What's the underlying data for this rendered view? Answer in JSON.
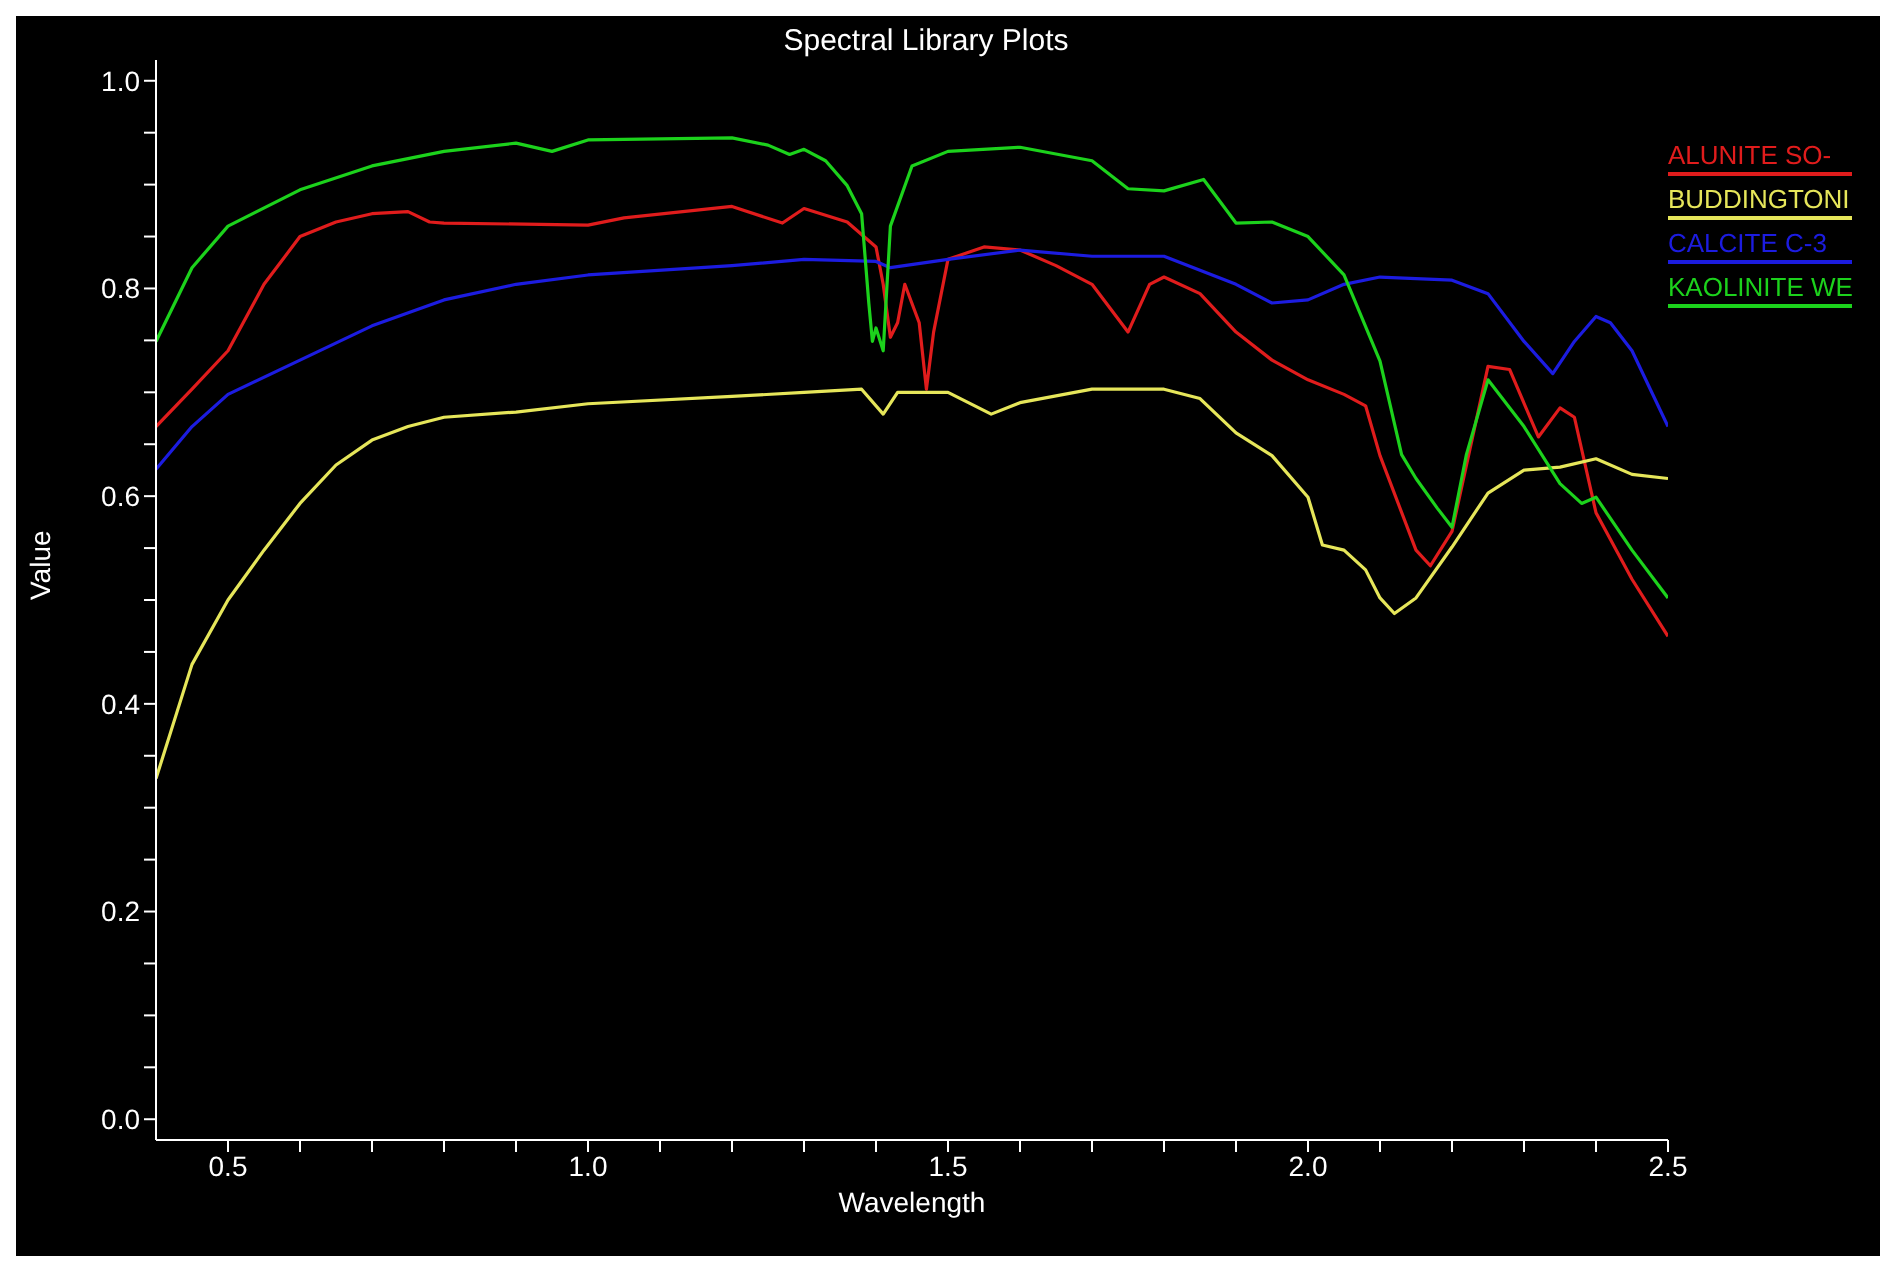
{
  "chart_data": {
    "type": "line",
    "title": "Spectral Library Plots",
    "xlabel": "Wavelength",
    "ylabel": "Value",
    "xlim": [
      0.4,
      2.5
    ],
    "ylim": [
      -0.02,
      1.02
    ],
    "xticks": [
      {
        "value": 0.5,
        "label": "0.5"
      },
      {
        "value": 0.6,
        "label": null
      },
      {
        "value": 0.7,
        "label": null
      },
      {
        "value": 0.8,
        "label": null
      },
      {
        "value": 0.9,
        "label": null
      },
      {
        "value": 1.0,
        "label": "1.0"
      },
      {
        "value": 1.1,
        "label": null
      },
      {
        "value": 1.2,
        "label": null
      },
      {
        "value": 1.3,
        "label": null
      },
      {
        "value": 1.4,
        "label": null
      },
      {
        "value": 1.5,
        "label": "1.5"
      },
      {
        "value": 1.6,
        "label": null
      },
      {
        "value": 1.7,
        "label": null
      },
      {
        "value": 1.8,
        "label": null
      },
      {
        "value": 1.9,
        "label": null
      },
      {
        "value": 2.0,
        "label": "2.0"
      },
      {
        "value": 2.1,
        "label": null
      },
      {
        "value": 2.2,
        "label": null
      },
      {
        "value": 2.3,
        "label": null
      },
      {
        "value": 2.4,
        "label": null
      },
      {
        "value": 2.5,
        "label": "2.5"
      }
    ],
    "yticks": [
      {
        "value": 0,
        "label": "0.0"
      },
      {
        "value": 0.05,
        "label": null
      },
      {
        "value": 0.1,
        "label": null
      },
      {
        "value": 0.15,
        "label": null
      },
      {
        "value": 0.2,
        "label": "0.2"
      },
      {
        "value": 0.25,
        "label": null
      },
      {
        "value": 0.3,
        "label": null
      },
      {
        "value": 0.35,
        "label": null
      },
      {
        "value": 0.4,
        "label": "0.4"
      },
      {
        "value": 0.45,
        "label": null
      },
      {
        "value": 0.5,
        "label": null
      },
      {
        "value": 0.55,
        "label": null
      },
      {
        "value": 0.6,
        "label": "0.6"
      },
      {
        "value": 0.65,
        "label": null
      },
      {
        "value": 0.7,
        "label": null
      },
      {
        "value": 0.75,
        "label": null
      },
      {
        "value": 0.8,
        "label": "0.8"
      },
      {
        "value": 0.85,
        "label": null
      },
      {
        "value": 0.9,
        "label": null
      },
      {
        "value": 0.95,
        "label": null
      },
      {
        "value": 1.0,
        "label": "1.0"
      }
    ],
    "grid": false,
    "legend": "right",
    "marker": "none",
    "line_style": "solid",
    "series": [
      {
        "name": "ALUNITE SO-",
        "color": "#e01c1c",
        "x": [
          0.4,
          0.45,
          0.5,
          0.55,
          0.6,
          0.65,
          0.7,
          0.75,
          0.78,
          0.8,
          1.0,
          1.05,
          1.2,
          1.27,
          1.3,
          1.36,
          1.4,
          1.41,
          1.42,
          1.43,
          1.44,
          1.46,
          1.47,
          1.48,
          1.5,
          1.55,
          1.6,
          1.65,
          1.7,
          1.75,
          1.78,
          1.8,
          1.85,
          1.9,
          1.95,
          2.0,
          2.05,
          2.08,
          2.1,
          2.15,
          2.17,
          2.2,
          2.25,
          2.28,
          2.32,
          2.35,
          2.37,
          2.4,
          2.45,
          2.5
        ],
        "values": [
          0.667,
          0.703,
          0.74,
          0.804,
          0.85,
          0.864,
          0.872,
          0.874,
          0.864,
          0.863,
          0.861,
          0.868,
          0.879,
          0.863,
          0.877,
          0.864,
          0.84,
          0.804,
          0.753,
          0.767,
          0.804,
          0.767,
          0.703,
          0.758,
          0.828,
          0.84,
          0.837,
          0.822,
          0.804,
          0.758,
          0.804,
          0.811,
          0.795,
          0.758,
          0.731,
          0.712,
          0.698,
          0.687,
          0.639,
          0.548,
          0.533,
          0.566,
          0.725,
          0.722,
          0.657,
          0.685,
          0.676,
          0.584,
          0.52,
          0.465
        ]
      },
      {
        "name": "BUDDINGTONI",
        "color": "#e6e65a",
        "x": [
          0.4,
          0.45,
          0.5,
          0.55,
          0.6,
          0.65,
          0.7,
          0.75,
          0.8,
          0.9,
          1.0,
          1.2,
          1.3,
          1.38,
          1.41,
          1.43,
          1.5,
          1.56,
          1.6,
          1.7,
          1.8,
          1.85,
          1.9,
          1.95,
          2.0,
          2.02,
          2.05,
          2.08,
          2.1,
          2.12,
          2.15,
          2.2,
          2.25,
          2.3,
          2.35,
          2.4,
          2.45,
          2.5
        ],
        "values": [
          0.328,
          0.438,
          0.5,
          0.548,
          0.593,
          0.63,
          0.654,
          0.667,
          0.676,
          0.681,
          0.689,
          0.696,
          0.7,
          0.703,
          0.679,
          0.7,
          0.7,
          0.679,
          0.69,
          0.703,
          0.703,
          0.694,
          0.661,
          0.639,
          0.599,
          0.553,
          0.548,
          0.529,
          0.502,
          0.487,
          0.502,
          0.551,
          0.603,
          0.625,
          0.628,
          0.636,
          0.621,
          0.617
        ]
      },
      {
        "name": "CALCITE C-3",
        "color": "#1c1ce0",
        "x": [
          0.4,
          0.45,
          0.5,
          0.6,
          0.7,
          0.8,
          0.9,
          1.0,
          1.2,
          1.3,
          1.4,
          1.42,
          1.5,
          1.6,
          1.7,
          1.8,
          1.9,
          1.95,
          2.0,
          2.05,
          2.1,
          2.2,
          2.25,
          2.3,
          2.34,
          2.37,
          2.4,
          2.42,
          2.45,
          2.5
        ],
        "values": [
          0.626,
          0.667,
          0.698,
          0.731,
          0.764,
          0.789,
          0.804,
          0.813,
          0.822,
          0.828,
          0.826,
          0.82,
          0.828,
          0.837,
          0.831,
          0.831,
          0.804,
          0.786,
          0.789,
          0.804,
          0.811,
          0.808,
          0.795,
          0.749,
          0.718,
          0.749,
          0.773,
          0.767,
          0.74,
          0.667
        ]
      },
      {
        "name": "KAOLINITE WE",
        "color": "#1cd21c",
        "x": [
          0.4,
          0.45,
          0.5,
          0.6,
          0.7,
          0.8,
          0.9,
          0.95,
          1.0,
          1.2,
          1.25,
          1.28,
          1.3,
          1.33,
          1.36,
          1.38,
          1.39,
          1.395,
          1.4,
          1.41,
          1.42,
          1.45,
          1.5,
          1.6,
          1.7,
          1.75,
          1.8,
          1.855,
          1.9,
          1.95,
          2.0,
          2.05,
          2.1,
          2.13,
          2.15,
          2.18,
          2.2,
          2.22,
          2.25,
          2.3,
          2.35,
          2.38,
          2.4,
          2.45,
          2.5
        ],
        "values": [
          0.749,
          0.82,
          0.86,
          0.895,
          0.918,
          0.932,
          0.94,
          0.932,
          0.943,
          0.945,
          0.938,
          0.929,
          0.934,
          0.923,
          0.899,
          0.872,
          0.786,
          0.749,
          0.762,
          0.74,
          0.86,
          0.918,
          0.932,
          0.936,
          0.923,
          0.896,
          0.894,
          0.905,
          0.863,
          0.864,
          0.85,
          0.813,
          0.73,
          0.64,
          0.617,
          0.588,
          0.57,
          0.64,
          0.712,
          0.667,
          0.612,
          0.593,
          0.599,
          0.548,
          0.502
        ]
      }
    ]
  }
}
